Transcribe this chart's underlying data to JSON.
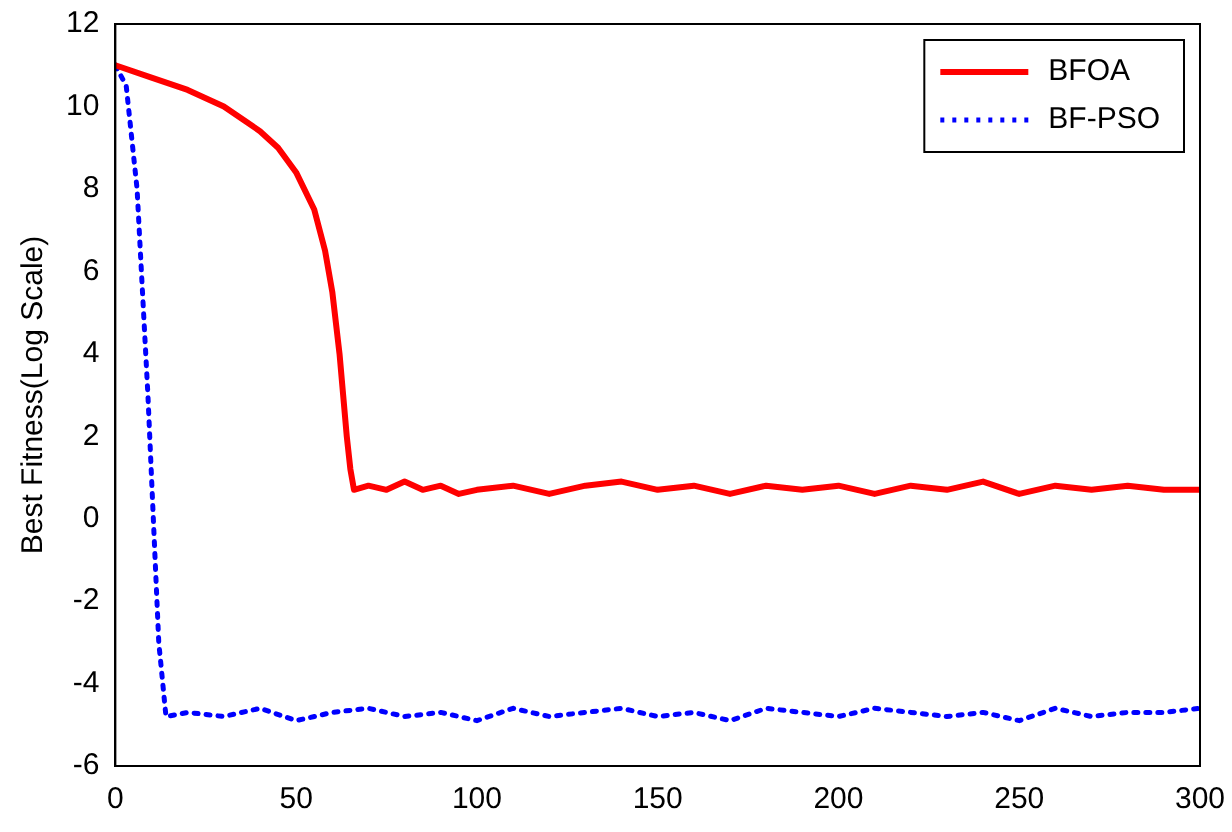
{
  "chart_data": {
    "type": "line",
    "ylabel": "Best Fitness(Log Scale)",
    "xlim": [
      0,
      300
    ],
    "xticks": [
      0,
      50,
      100,
      150,
      200,
      250,
      300
    ],
    "ylim": [
      -6,
      12
    ],
    "yticks": [
      -6,
      -4,
      -2,
      0,
      2,
      4,
      6,
      8,
      10,
      12
    ],
    "grid": false,
    "legend": "top right",
    "marker": "none",
    "series": [
      {
        "name": "BFOA",
        "color": "#ff0000",
        "line_style": "solid",
        "x": [
          0,
          10,
          20,
          30,
          40,
          45,
          50,
          55,
          58,
          60,
          62,
          63,
          64,
          65,
          66,
          70,
          75,
          80,
          85,
          90,
          95,
          100,
          110,
          120,
          130,
          140,
          150,
          160,
          170,
          180,
          190,
          200,
          210,
          220,
          230,
          240,
          250,
          260,
          270,
          280,
          290,
          300
        ],
        "values": [
          11,
          10.7,
          10.4,
          10,
          9.4,
          9,
          8.4,
          7.5,
          6.5,
          5.5,
          4,
          3,
          2,
          1.2,
          0.7,
          0.8,
          0.7,
          0.9,
          0.7,
          0.8,
          0.6,
          0.7,
          0.8,
          0.6,
          0.8,
          0.9,
          0.7,
          0.8,
          0.6,
          0.8,
          0.7,
          0.8,
          0.6,
          0.8,
          0.7,
          0.9,
          0.6,
          0.8,
          0.7,
          0.8,
          0.7,
          0.7
        ]
      },
      {
        "name": "BF-PSO",
        "color": "#0000ff",
        "line_style": "dotted",
        "x": [
          0,
          3,
          6,
          9,
          12,
          14,
          20,
          30,
          40,
          50,
          60,
          70,
          80,
          90,
          100,
          110,
          120,
          130,
          140,
          150,
          160,
          170,
          180,
          190,
          200,
          210,
          220,
          230,
          240,
          250,
          260,
          270,
          280,
          290,
          300
        ],
        "values": [
          11,
          10.5,
          8,
          3,
          -3,
          -4.8,
          -4.7,
          -4.8,
          -4.6,
          -4.9,
          -4.7,
          -4.6,
          -4.8,
          -4.7,
          -4.9,
          -4.6,
          -4.8,
          -4.7,
          -4.6,
          -4.8,
          -4.7,
          -4.9,
          -4.6,
          -4.7,
          -4.8,
          -4.6,
          -4.7,
          -4.8,
          -4.7,
          -4.9,
          -4.6,
          -4.8,
          -4.7,
          -4.7,
          -4.6
        ]
      }
    ]
  }
}
